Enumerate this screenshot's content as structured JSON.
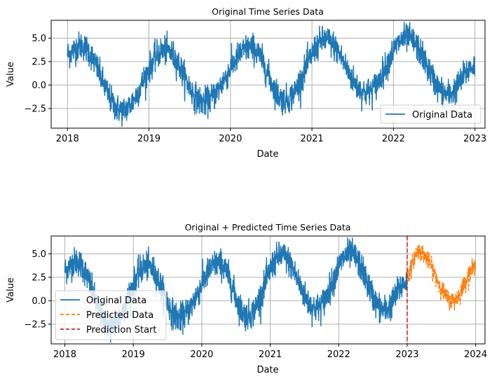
{
  "chart_data": [
    {
      "type": "line",
      "title": "Original Time Series Data",
      "xlabel": "Date",
      "ylabel": "Value",
      "x_ticks": [
        "2018",
        "2019",
        "2020",
        "2021",
        "2022",
        "2023"
      ],
      "y_ticks": [
        "5.0",
        "2.5",
        "0.0",
        "−2.5"
      ],
      "xlim": [
        "2017-10-20",
        "2023-02-15"
      ],
      "ylim": [
        -4.6,
        6.9
      ],
      "grid": true,
      "legend_position": "lower-right",
      "series": [
        {
          "name": "Original Data",
          "color": "#1f77b4",
          "style": "solid",
          "x_start": "2018-01-01",
          "x_end": "2022-12-31",
          "peaks": [
            {
              "date": "2018-03-01",
              "value": 5.8
            },
            {
              "date": "2019-03-15",
              "value": 5.3
            },
            {
              "date": "2020-04-01",
              "value": 5.6
            },
            {
              "date": "2021-03-01",
              "value": 6.4
            },
            {
              "date": "2022-03-01",
              "value": 6.6
            }
          ],
          "troughs": [
            {
              "date": "2018-09-01",
              "value": -4.3
            },
            {
              "date": "2019-09-01",
              "value": -3.4
            },
            {
              "date": "2020-09-01",
              "value": -3.2
            },
            {
              "date": "2021-09-01",
              "value": -2.4
            },
            {
              "date": "2022-09-01",
              "value": -2.6
            }
          ]
        }
      ]
    },
    {
      "type": "line",
      "title": "Original + Predicted Time Series Data",
      "xlabel": "Date",
      "ylabel": "Value",
      "x_ticks": [
        "2018",
        "2019",
        "2020",
        "2021",
        "2022",
        "2023",
        "2024"
      ],
      "y_ticks": [
        "5.0",
        "2.5",
        "0.0",
        "−2.5"
      ],
      "xlim": [
        "2017-10-20",
        "2024-02-20"
      ],
      "ylim": [
        -4.6,
        6.9
      ],
      "grid": true,
      "legend_position": "lower-left",
      "series": [
        {
          "name": "Original Data",
          "color": "#1f77b4",
          "style": "solid",
          "x_start": "2018-01-01",
          "x_end": "2022-12-31"
        },
        {
          "name": "Predicted Data",
          "color": "#ff7f0e",
          "style": "dashed",
          "x_start": "2023-01-01",
          "x_end": "2023-12-31",
          "peaks": [
            {
              "date": "2023-03-01",
              "value": 6.5
            }
          ],
          "troughs": [
            {
              "date": "2023-09-01",
              "value": -1.0
            }
          ],
          "end_value": 4.3
        },
        {
          "name": "Prediction Start",
          "color": "#d62728",
          "style": "dashed",
          "type": "vertical-line",
          "x": "2023-01-01"
        }
      ]
    }
  ]
}
